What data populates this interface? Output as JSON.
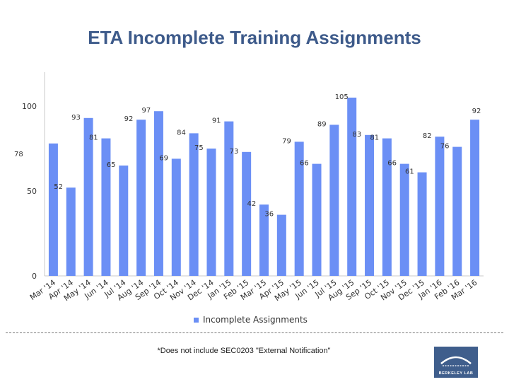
{
  "page": {
    "title": "ETA Incomplete Training Assignments",
    "footnote": "*Does not include SEC0203 \"External Notification\"",
    "logo_text": "BERKELEY LAB"
  },
  "colors": {
    "bar": "#6b8ff5",
    "title": "#3d5a8a",
    "axis": "#c8c8c8",
    "logo": "#3f5e8c"
  },
  "chart_data": {
    "type": "bar",
    "title": "ETA Incomplete Training Assignments",
    "xlabel": "",
    "ylabel": "",
    "ylim": [
      0,
      120
    ],
    "yticks": [
      0,
      50,
      100
    ],
    "grid": false,
    "legend": {
      "position": "bottom",
      "entries": [
        "Incomplete Assignments"
      ]
    },
    "categories": [
      "Mar '14",
      "Apr '14",
      "May '14",
      "Jun '14",
      "Jul '14",
      "Aug '14",
      "Sep '14",
      "Oct '14",
      "Nov '14",
      "Dec '14",
      "Jan '15",
      "Feb '15",
      "Mar '15",
      "Apr '15",
      "May '15",
      "Jun '15",
      "Jul '15",
      "Aug '15",
      "Sep '15",
      "Oct '15",
      "Nov '15",
      "Dec '15",
      "Jan '16",
      "Feb '16",
      "Mar '16"
    ],
    "series": [
      {
        "name": "Incomplete Assignments",
        "values": [
          78,
          52,
          93,
          81,
          65,
          92,
          97,
          69,
          84,
          75,
          91,
          73,
          42,
          36,
          79,
          66,
          89,
          105,
          83,
          81,
          66,
          61,
          82,
          76,
          92
        ]
      }
    ]
  }
}
